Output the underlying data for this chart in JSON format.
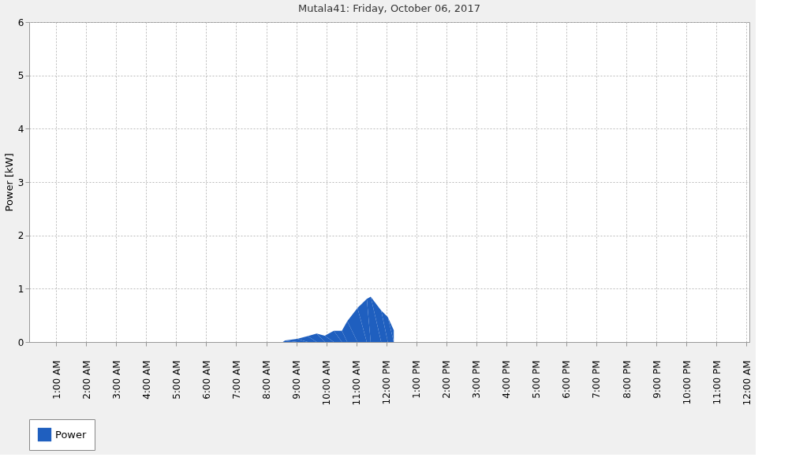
{
  "chart_data": {
    "type": "area",
    "title": "Mutala41: Friday, October 06, 2017",
    "ylabel": "Power [kW]",
    "x": [
      0.1,
      8.55,
      8.63,
      9.03,
      9.38,
      9.68,
      9.95,
      10.25,
      10.52,
      10.7,
      11.04,
      11.35,
      11.48,
      11.83,
      12.05,
      12.25
    ],
    "series": [
      {
        "name": "Power",
        "color": "#1f5fbf",
        "values": [
          0,
          0,
          0.03,
          0.06,
          0.11,
          0.16,
          0.12,
          0.21,
          0.21,
          0.39,
          0.64,
          0.81,
          0.85,
          0.59,
          0.47,
          0.22
        ]
      }
    ],
    "xlim": [
      0.1,
      24.1
    ],
    "ylim": [
      0,
      6
    ],
    "yticks": [
      0,
      1,
      2,
      3,
      4,
      5,
      6
    ],
    "xticks": [
      {
        "value": 1,
        "label": "1:00 AM"
      },
      {
        "value": 2,
        "label": "2:00 AM"
      },
      {
        "value": 3,
        "label": "3:00 AM"
      },
      {
        "value": 4,
        "label": "4:00 AM"
      },
      {
        "value": 5,
        "label": "5:00 AM"
      },
      {
        "value": 6,
        "label": "6:00 AM"
      },
      {
        "value": 7,
        "label": "7:00 AM"
      },
      {
        "value": 8,
        "label": "8:00 AM"
      },
      {
        "value": 9,
        "label": "9:00 AM"
      },
      {
        "value": 10,
        "label": "10:00 AM"
      },
      {
        "value": 11,
        "label": "11:00 AM"
      },
      {
        "value": 12,
        "label": "12:00 PM"
      },
      {
        "value": 13,
        "label": "1:00 PM"
      },
      {
        "value": 14,
        "label": "2:00 PM"
      },
      {
        "value": 15,
        "label": "3:00 PM"
      },
      {
        "value": 16,
        "label": "4:00 PM"
      },
      {
        "value": 17,
        "label": "5:00 PM"
      },
      {
        "value": 18,
        "label": "6:00 PM"
      },
      {
        "value": 19,
        "label": "7:00 PM"
      },
      {
        "value": 20,
        "label": "8:00 PM"
      },
      {
        "value": 21,
        "label": "9:00 PM"
      },
      {
        "value": 22,
        "label": "10:00 PM"
      },
      {
        "value": 23,
        "label": "11:00 PM"
      },
      {
        "value": 24,
        "label": "12:00 AM"
      }
    ],
    "grid": true,
    "legend": "bottom"
  }
}
